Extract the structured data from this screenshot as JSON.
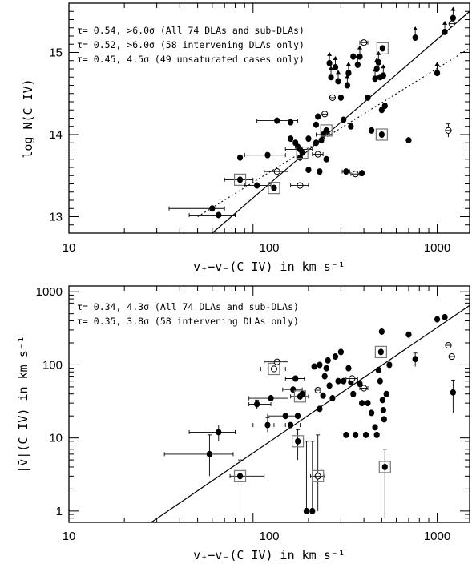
{
  "chart_data": [
    {
      "type": "scatter",
      "xlabel": "v₊−v₋(C IV) in km s⁻¹",
      "ylabel": "log N(C IV)",
      "xscale": "log",
      "xlim": [
        10,
        1500
      ],
      "ylim": [
        12.8,
        15.6
      ],
      "xticks": [
        "10",
        "100",
        "1000"
      ],
      "yticks": [
        "13",
        "14",
        "15"
      ],
      "annotations": [
        "τ= 0.54, >6.0σ (All 74 DLAs and sub-DLAs)",
        "τ= 0.52, >6.0σ (58 intervening DLAs only)",
        "τ= 0.45, 4.5σ (49 unsaturated cases only)"
      ],
      "fit_lines": [
        {
          "style": "solid",
          "points": [
            [
              60,
              12.8
            ],
            [
              1500,
              15.5
            ]
          ]
        },
        {
          "style": "dotted",
          "points": [
            [
              50,
              13.0
            ],
            [
              1500,
              15.05
            ]
          ]
        }
      ],
      "points": [
        {
          "x": 60,
          "y": 13.1,
          "xerr": [
            25,
            10
          ]
        },
        {
          "x": 65,
          "y": 13.02,
          "xerr": [
            20,
            15
          ]
        },
        {
          "x": 85,
          "y": 13.72
        },
        {
          "x": 85,
          "y": 13.45,
          "xerr": [
            15,
            15
          ],
          "box": true
        },
        {
          "x": 105,
          "y": 13.38,
          "xerr": [
            15,
            20
          ]
        },
        {
          "x": 120,
          "y": 13.75,
          "xerr": [
            30,
            30
          ]
        },
        {
          "x": 130,
          "y": 13.35,
          "box": true
        },
        {
          "x": 135,
          "y": 13.55,
          "open": true,
          "xerr": [
            20,
            20
          ]
        },
        {
          "x": 135,
          "y": 14.17,
          "xerr": [
            30,
            40
          ]
        },
        {
          "x": 160,
          "y": 14.15
        },
        {
          "x": 160,
          "y": 13.95
        },
        {
          "x": 170,
          "y": 13.9
        },
        {
          "x": 175,
          "y": 13.85
        },
        {
          "x": 180,
          "y": 13.82,
          "xerr": [
            30,
            30
          ]
        },
        {
          "x": 180,
          "y": 13.72
        },
        {
          "x": 185,
          "y": 13.78,
          "box": true
        },
        {
          "x": 180,
          "y": 13.38,
          "open": true,
          "xerr": [
            20,
            20
          ]
        },
        {
          "x": 200,
          "y": 13.95
        },
        {
          "x": 200,
          "y": 13.57
        },
        {
          "x": 220,
          "y": 13.9
        },
        {
          "x": 220,
          "y": 14.12
        },
        {
          "x": 225,
          "y": 14.22
        },
        {
          "x": 225,
          "y": 13.76,
          "open": true,
          "xerr": [
            15,
            15
          ]
        },
        {
          "x": 230,
          "y": 13.55
        },
        {
          "x": 235,
          "y": 13.93
        },
        {
          "x": 240,
          "y": 14.0,
          "xerr": [
            20,
            20
          ]
        },
        {
          "x": 245,
          "y": 14.25,
          "open": true
        },
        {
          "x": 250,
          "y": 14.05,
          "box": true
        },
        {
          "x": 250,
          "y": 13.7
        },
        {
          "x": 260,
          "y": 14.87,
          "limit": true
        },
        {
          "x": 265,
          "y": 14.7,
          "limit": true
        },
        {
          "x": 270,
          "y": 14.45,
          "open": true
        },
        {
          "x": 280,
          "y": 14.82,
          "limit": true
        },
        {
          "x": 290,
          "y": 14.65,
          "limit": true
        },
        {
          "x": 300,
          "y": 14.45
        },
        {
          "x": 310,
          "y": 14.18
        },
        {
          "x": 320,
          "y": 13.55,
          "xerr": [
            15,
            15
          ]
        },
        {
          "x": 325,
          "y": 14.6,
          "limit": true
        },
        {
          "x": 330,
          "y": 14.75,
          "limit": true
        },
        {
          "x": 340,
          "y": 14.1
        },
        {
          "x": 350,
          "y": 14.95
        },
        {
          "x": 360,
          "y": 13.52,
          "open": true,
          "xerr": [
            20,
            20
          ]
        },
        {
          "x": 370,
          "y": 14.85,
          "limit": true
        },
        {
          "x": 380,
          "y": 14.95,
          "limit": true
        },
        {
          "x": 390,
          "y": 13.53
        },
        {
          "x": 400,
          "y": 15.12,
          "open": true,
          "xerr": [
            20,
            20
          ]
        },
        {
          "x": 420,
          "y": 14.45
        },
        {
          "x": 440,
          "y": 14.05
        },
        {
          "x": 460,
          "y": 14.68,
          "limit": true
        },
        {
          "x": 470,
          "y": 14.8,
          "limit": true
        },
        {
          "x": 480,
          "y": 14.88,
          "limit": true
        },
        {
          "x": 490,
          "y": 14.7
        },
        {
          "x": 500,
          "y": 14.3
        },
        {
          "x": 500,
          "y": 14.0,
          "box": true
        },
        {
          "x": 505,
          "y": 15.05,
          "box": true
        },
        {
          "x": 510,
          "y": 14.72,
          "limit": true
        },
        {
          "x": 520,
          "y": 14.35
        },
        {
          "x": 700,
          "y": 13.93
        },
        {
          "x": 760,
          "y": 15.18,
          "limit": true
        },
        {
          "x": 1000,
          "y": 14.75,
          "limit": true
        },
        {
          "x": 1100,
          "y": 15.25,
          "limit": true
        },
        {
          "x": 1150,
          "y": 14.05,
          "open": true,
          "yerr": [
            0.08,
            0.08
          ]
        },
        {
          "x": 1200,
          "y": 15.35,
          "open": true
        },
        {
          "x": 1220,
          "y": 15.42,
          "limit": true
        }
      ]
    },
    {
      "type": "scatter",
      "xlabel": "v₊−v₋(C IV) in km s⁻¹",
      "ylabel": "|v̄|(C IV) in km s⁻¹",
      "xscale": "log",
      "yscale": "log",
      "xlim": [
        10,
        1500
      ],
      "ylim": [
        0.7,
        1200
      ],
      "xticks": [
        "10",
        "100",
        "1000"
      ],
      "yticks": [
        "1",
        "10",
        "100",
        "1000"
      ],
      "annotations": [
        "τ= 0.34, 4.3σ (All 74 DLAs and sub-DLAs)",
        "τ= 0.35, 3.8σ (58 intervening DLAs only)"
      ],
      "fit_lines": [
        {
          "style": "solid",
          "points": [
            [
              28,
              0.7
            ],
            [
              1500,
              650
            ]
          ]
        }
      ],
      "points": [
        {
          "x": 58,
          "y": 6,
          "xerr": [
            25,
            20
          ],
          "yerr": [
            3,
            5
          ]
        },
        {
          "x": 65,
          "y": 12,
          "xerr": [
            20,
            15
          ],
          "yerr": [
            3,
            3
          ]
        },
        {
          "x": 85,
          "y": 3,
          "xerr": [
            10,
            30
          ],
          "yerr": [
            2.3,
            2
          ],
          "box": true
        },
        {
          "x": 105,
          "y": 29,
          "xerr": [
            10,
            20
          ],
          "yerr": [
            4,
            4
          ]
        },
        {
          "x": 120,
          "y": 15,
          "xerr": [
            20,
            30
          ],
          "yerr": [
            3,
            4
          ]
        },
        {
          "x": 125,
          "y": 35,
          "xerr": [
            30,
            30
          ]
        },
        {
          "x": 130,
          "y": 88,
          "open": true,
          "box": true,
          "xerr": [
            20,
            20
          ]
        },
        {
          "x": 135,
          "y": 110,
          "open": true,
          "xerr": [
            20,
            20
          ]
        },
        {
          "x": 150,
          "y": 20,
          "xerr": [
            30,
            20
          ]
        },
        {
          "x": 160,
          "y": 15,
          "xerr": [
            30,
            20
          ]
        },
        {
          "x": 165,
          "y": 46,
          "xerr": [
            20,
            20
          ]
        },
        {
          "x": 170,
          "y": 65,
          "xerr": [
            20,
            20
          ]
        },
        {
          "x": 175,
          "y": 9,
          "box": true,
          "yerr": [
            4,
            4
          ]
        },
        {
          "x": 175,
          "y": 20
        },
        {
          "x": 180,
          "y": 37,
          "box": true,
          "xerr": [
            20,
            20
          ]
        },
        {
          "x": 185,
          "y": 40
        },
        {
          "x": 195,
          "y": 1,
          "yerr": [
            0,
            8
          ]
        },
        {
          "x": 210,
          "y": 1,
          "yerr": [
            0,
            8
          ]
        },
        {
          "x": 215,
          "y": 95
        },
        {
          "x": 225,
          "y": 3,
          "open": true,
          "box": true,
          "xerr": [
            20,
            20
          ],
          "yerr": [
            2,
            8
          ]
        },
        {
          "x": 225,
          "y": 45,
          "open": true
        },
        {
          "x": 230,
          "y": 100
        },
        {
          "x": 230,
          "y": 25
        },
        {
          "x": 240,
          "y": 38
        },
        {
          "x": 245,
          "y": 70
        },
        {
          "x": 250,
          "y": 90
        },
        {
          "x": 255,
          "y": 115
        },
        {
          "x": 260,
          "y": 52
        },
        {
          "x": 270,
          "y": 35
        },
        {
          "x": 280,
          "y": 130
        },
        {
          "x": 290,
          "y": 60
        },
        {
          "x": 300,
          "y": 150
        },
        {
          "x": 310,
          "y": 60
        },
        {
          "x": 320,
          "y": 11
        },
        {
          "x": 330,
          "y": 90
        },
        {
          "x": 340,
          "y": 58
        },
        {
          "x": 345,
          "y": 65,
          "open": true,
          "xerr": [
            25,
            25
          ]
        },
        {
          "x": 350,
          "y": 40
        },
        {
          "x": 360,
          "y": 11
        },
        {
          "x": 380,
          "y": 55
        },
        {
          "x": 390,
          "y": 30
        },
        {
          "x": 400,
          "y": 48,
          "open": true,
          "xerr": [
            20,
            20
          ]
        },
        {
          "x": 410,
          "y": 11
        },
        {
          "x": 420,
          "y": 30
        },
        {
          "x": 440,
          "y": 22
        },
        {
          "x": 460,
          "y": 14
        },
        {
          "x": 470,
          "y": 11
        },
        {
          "x": 480,
          "y": 85
        },
        {
          "x": 490,
          "y": 60
        },
        {
          "x": 495,
          "y": 150,
          "box": true
        },
        {
          "x": 500,
          "y": 285
        },
        {
          "x": 505,
          "y": 33
        },
        {
          "x": 510,
          "y": 24
        },
        {
          "x": 515,
          "y": 18
        },
        {
          "x": 520,
          "y": 4,
          "box": true,
          "yerr": [
            3.2,
            3
          ]
        },
        {
          "x": 530,
          "y": 40
        },
        {
          "x": 550,
          "y": 100
        },
        {
          "x": 700,
          "y": 260
        },
        {
          "x": 760,
          "y": 120,
          "yerr": [
            25,
            25
          ]
        },
        {
          "x": 1000,
          "y": 420
        },
        {
          "x": 1100,
          "y": 450
        },
        {
          "x": 1150,
          "y": 185,
          "open": true
        },
        {
          "x": 1200,
          "y": 130,
          "open": true
        },
        {
          "x": 1220,
          "y": 42,
          "yerr": [
            20,
            20
          ]
        }
      ]
    }
  ]
}
